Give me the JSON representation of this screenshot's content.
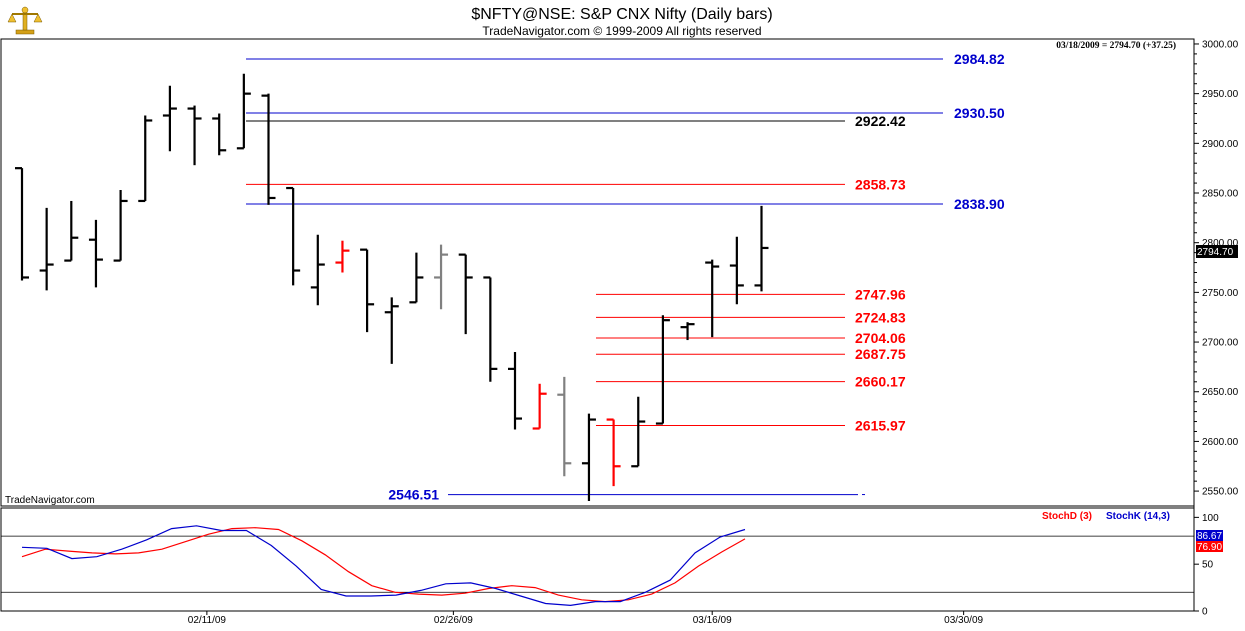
{
  "header": {
    "title": "$NFTY@NSE:  S&P CNX Nifty  (Daily bars)",
    "copyright": "TradeNavigator.com © 1999-2009 All rights reserved",
    "watermark": "TradeNavigator.com",
    "last_info": "03/18/2009 = 2794.70 (+37.25)",
    "last_price_box": "2794.70",
    "logo_icon": "trophy-scales-icon"
  },
  "colors": {
    "bar": "#000000",
    "bar_down_red": "#ff0000",
    "bar_gray": "#808080",
    "blue_level": "#0000cc",
    "red_level": "#ff0000",
    "stoch_d": "#ff0000",
    "stoch_k": "#0000cc",
    "axis_text": "#000000"
  },
  "chart_data": [
    {
      "type": "ohlc",
      "title": "$NFTY@NSE:  S&P CNX Nifty  (Daily bars)",
      "x_tick_labels": [
        "02/11/09",
        "02/26/09",
        "03/16/09",
        "03/30/09"
      ],
      "y_tick_labels": [
        "2550.00",
        "2600.00",
        "2650.00",
        "2700.00",
        "2750.00",
        "2800.00",
        "2850.00",
        "2900.00",
        "2950.00",
        "3000.00"
      ],
      "ylim": [
        2535,
        3005
      ],
      "grid": false,
      "bars": [
        {
          "o": 2875,
          "h": 2875,
          "l": 2762,
          "c": 2765,
          "color": "black"
        },
        {
          "o": 2772,
          "h": 2835,
          "l": 2752,
          "c": 2778,
          "color": "black"
        },
        {
          "o": 2782,
          "h": 2842,
          "l": 2782,
          "c": 2805,
          "color": "black"
        },
        {
          "o": 2803,
          "h": 2823,
          "l": 2755,
          "c": 2783,
          "color": "black"
        },
        {
          "o": 2782,
          "h": 2853,
          "l": 2782,
          "c": 2842,
          "color": "black"
        },
        {
          "o": 2842,
          "h": 2928,
          "l": 2842,
          "c": 2923,
          "color": "black"
        },
        {
          "o": 2928,
          "h": 2958,
          "l": 2892,
          "c": 2935,
          "color": "black"
        },
        {
          "o": 2935,
          "h": 2938,
          "l": 2878,
          "c": 2925,
          "color": "black"
        },
        {
          "o": 2925,
          "h": 2930,
          "l": 2888,
          "c": 2893,
          "color": "black"
        },
        {
          "o": 2895,
          "h": 2970,
          "l": 2895,
          "c": 2950,
          "color": "black"
        },
        {
          "o": 2948,
          "h": 2950,
          "l": 2838,
          "c": 2845,
          "color": "black"
        },
        {
          "o": 2855,
          "h": 2855,
          "l": 2757,
          "c": 2772,
          "color": "black"
        },
        {
          "o": 2755,
          "h": 2808,
          "l": 2737,
          "c": 2778,
          "color": "black"
        },
        {
          "o": 2780,
          "h": 2802,
          "l": 2770,
          "c": 2792,
          "color": "red"
        },
        {
          "o": 2793,
          "h": 2793,
          "l": 2710,
          "c": 2738,
          "color": "black"
        },
        {
          "o": 2730,
          "h": 2745,
          "l": 2678,
          "c": 2736,
          "color": "black"
        },
        {
          "o": 2740,
          "h": 2790,
          "l": 2740,
          "c": 2765,
          "color": "black"
        },
        {
          "o": 2765,
          "h": 2798,
          "l": 2733,
          "c": 2788,
          "color": "gray"
        },
        {
          "o": 2788,
          "h": 2788,
          "l": 2708,
          "c": 2765,
          "color": "black"
        },
        {
          "o": 2765,
          "h": 2765,
          "l": 2660,
          "c": 2673,
          "color": "black"
        },
        {
          "o": 2673,
          "h": 2690,
          "l": 2612,
          "c": 2623,
          "color": "black"
        },
        {
          "o": 2613,
          "h": 2658,
          "l": 2613,
          "c": 2648,
          "color": "red"
        },
        {
          "o": 2647,
          "h": 2665,
          "l": 2565,
          "c": 2578,
          "color": "gray"
        },
        {
          "o": 2578,
          "h": 2628,
          "l": 2540,
          "c": 2622,
          "color": "black"
        },
        {
          "o": 2622,
          "h": 2622,
          "l": 2555,
          "c": 2575,
          "color": "red"
        },
        {
          "o": 2575,
          "h": 2645,
          "l": 2575,
          "c": 2620,
          "color": "black"
        },
        {
          "o": 2618,
          "h": 2727,
          "l": 2618,
          "c": 2722,
          "color": "black"
        },
        {
          "o": 2715,
          "h": 2720,
          "l": 2702,
          "c": 2718,
          "color": "black"
        },
        {
          "o": 2780,
          "h": 2783,
          "l": 2705,
          "c": 2776,
          "color": "black"
        },
        {
          "o": 2777,
          "h": 2806,
          "l": 2738,
          "c": 2757,
          "color": "black"
        },
        {
          "o": 2757,
          "h": 2837,
          "l": 2751,
          "c": 2794.7,
          "color": "black"
        }
      ],
      "levels": [
        {
          "value": 2984.82,
          "label": "2984.82",
          "color": "blue"
        },
        {
          "value": 2930.5,
          "label": "2930.50",
          "color": "blue"
        },
        {
          "value": 2922.42,
          "label": "2922.42",
          "color": "black"
        },
        {
          "value": 2858.73,
          "label": "2858.73",
          "color": "red"
        },
        {
          "value": 2838.9,
          "label": "2838.90",
          "color": "blue"
        },
        {
          "value": 2747.96,
          "label": "2747.96",
          "color": "red"
        },
        {
          "value": 2724.83,
          "label": "2724.83",
          "color": "red"
        },
        {
          "value": 2704.06,
          "label": "2704.06",
          "color": "red"
        },
        {
          "value": 2687.75,
          "label": "2687.75",
          "color": "red"
        },
        {
          "value": 2660.17,
          "label": "2660.17",
          "color": "red"
        },
        {
          "value": 2615.97,
          "label": "2615.97",
          "color": "red"
        },
        {
          "value": 2546.51,
          "label": "2546.51",
          "color": "blue"
        }
      ]
    },
    {
      "type": "line",
      "y_tick_labels": [
        "0",
        "50",
        "100"
      ],
      "ylim": [
        0,
        110
      ],
      "legend": [
        "StochD (3)",
        "StochK (14,3)"
      ],
      "last_values": [
        "86.67",
        "76.90"
      ],
      "series": [
        {
          "name": "StochD (3)",
          "color": "red",
          "values": [
            58,
            66,
            64,
            62,
            61,
            62,
            66,
            74,
            82,
            88,
            89,
            87,
            75,
            60,
            42,
            27,
            20,
            18,
            17,
            19,
            24,
            27,
            25,
            17,
            12,
            10,
            12,
            18,
            30,
            48,
            63,
            77
          ]
        },
        {
          "name": "StochK (14,3)",
          "color": "blue",
          "values": [
            68,
            67,
            56,
            58,
            66,
            76,
            88,
            91,
            86,
            86,
            70,
            48,
            23,
            16,
            16,
            17,
            22,
            29,
            30,
            24,
            16,
            8,
            6,
            10,
            10,
            20,
            33,
            62,
            79,
            87
          ]
        }
      ],
      "reference_lines": [
        80,
        20
      ]
    }
  ]
}
